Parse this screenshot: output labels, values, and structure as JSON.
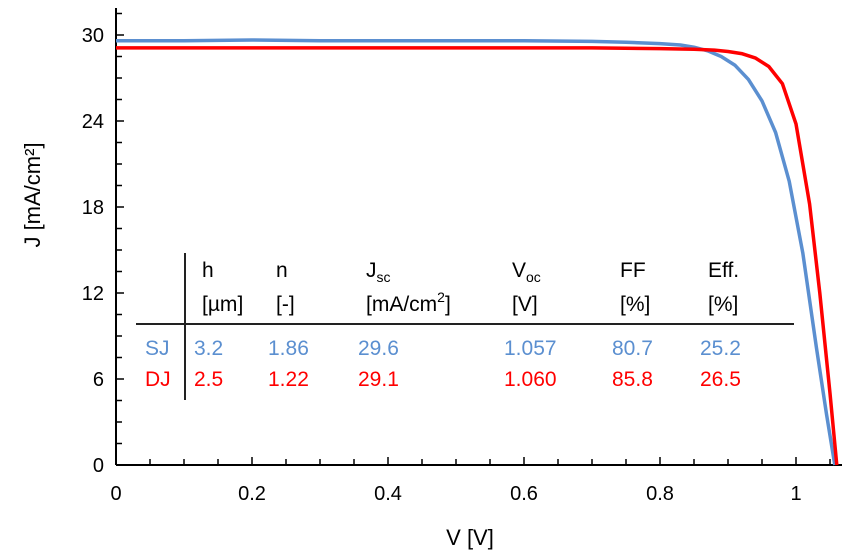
{
  "chart_data": {
    "type": "line",
    "xlabel": "V [V]",
    "ylabel": "J [mA/cm²]",
    "xlim": [
      0,
      1.1
    ],
    "ylim": [
      0,
      32
    ],
    "xticks": [
      0,
      0.2,
      0.4,
      0.6,
      0.8,
      1
    ],
    "xtick_labels": [
      "0",
      "0.2",
      "0.4",
      "0.6",
      "0.8",
      "1"
    ],
    "yticks": [
      0,
      6,
      12,
      18,
      24,
      30
    ],
    "ytick_labels": [
      "0",
      "6",
      "12",
      "18",
      "24",
      "30"
    ],
    "grid": false,
    "legend": "inline table",
    "series": [
      {
        "name": "SJ",
        "color": "#5b8fd0",
        "x": [
          0,
          0.1,
          0.2,
          0.3,
          0.4,
          0.5,
          0.6,
          0.7,
          0.75,
          0.8,
          0.83,
          0.85,
          0.87,
          0.89,
          0.91,
          0.93,
          0.95,
          0.97,
          0.99,
          1.01,
          1.03,
          1.045,
          1.057
        ],
        "y": [
          29.6,
          29.6,
          29.65,
          29.6,
          29.6,
          29.6,
          29.6,
          29.55,
          29.5,
          29.4,
          29.3,
          29.15,
          28.9,
          28.5,
          27.9,
          26.9,
          25.4,
          23.2,
          19.8,
          14.8,
          8.2,
          3.5,
          0
        ]
      },
      {
        "name": "DJ",
        "color": "#ff0000",
        "x": [
          0,
          0.1,
          0.2,
          0.3,
          0.4,
          0.5,
          0.6,
          0.7,
          0.8,
          0.85,
          0.88,
          0.9,
          0.92,
          0.94,
          0.96,
          0.98,
          1.0,
          1.02,
          1.035,
          1.05,
          1.06
        ],
        "y": [
          29.1,
          29.1,
          29.1,
          29.1,
          29.1,
          29.1,
          29.1,
          29.1,
          29.05,
          29.0,
          28.95,
          28.85,
          28.7,
          28.4,
          27.8,
          26.6,
          23.8,
          18.2,
          12.0,
          5.0,
          0
        ]
      }
    ],
    "table": {
      "headers": [
        {
          "main": "h",
          "sub": "",
          "unit_pre": "[",
          "unit_mid": "µm",
          "unit_sup": "",
          "unit_post": "]"
        },
        {
          "main": "n",
          "sub": "",
          "unit_pre": "[",
          "unit_mid": "-",
          "unit_sup": "",
          "unit_post": "]"
        },
        {
          "main": "J",
          "sub": "sc",
          "unit_pre": "[",
          "unit_mid": "mA/cm",
          "unit_sup": "2",
          "unit_post": "]"
        },
        {
          "main": "V",
          "sub": "oc",
          "unit_pre": "[",
          "unit_mid": "V",
          "unit_sup": "",
          "unit_post": "]"
        },
        {
          "main": "FF",
          "sub": "",
          "unit_pre": "[",
          "unit_mid": "%",
          "unit_sup": "",
          "unit_post": "]"
        },
        {
          "main": "Eff.",
          "sub": "",
          "unit_pre": "[",
          "unit_mid": "%",
          "unit_sup": "",
          "unit_post": "]"
        }
      ],
      "rows": [
        {
          "label": "SJ",
          "color": "#5b8fd0",
          "values": [
            "3.2",
            "1.86",
            "29.6",
            "1.057",
            "80.7",
            "25.2"
          ]
        },
        {
          "label": "DJ",
          "color": "#ff0000",
          "values": [
            "2.5",
            "1.22",
            "29.1",
            "1.060",
            "85.8",
            "26.5"
          ]
        }
      ]
    }
  }
}
